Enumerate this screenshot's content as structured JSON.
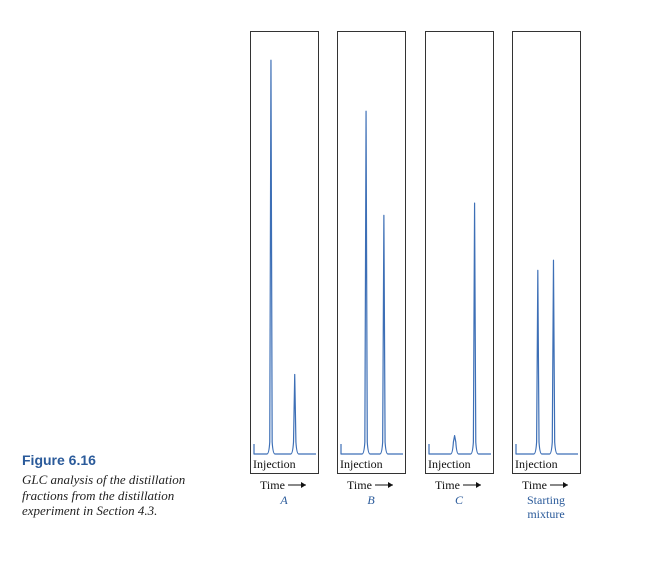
{
  "figure": {
    "title": "Figure 6.16",
    "caption": "GLC analysis of the distillation fractions from the distillation experiment in Section 4.3."
  },
  "colors": {
    "trace": "#3d6fb6",
    "label": "#2a5a9a",
    "frame": "#333333"
  },
  "chart_data": [
    {
      "type": "line",
      "name": "A",
      "injection_label": "Injection",
      "xlabel": "Time",
      "label_lines": [
        "A"
      ],
      "peaks": [
        {
          "position": 0.24,
          "height": 0.965
        },
        {
          "position": 0.68,
          "height": 0.195
        }
      ]
    },
    {
      "type": "line",
      "name": "B",
      "injection_label": "Injection",
      "xlabel": "Time",
      "label_lines": [
        "B"
      ],
      "peaks": [
        {
          "position": 0.39,
          "height": 0.84
        },
        {
          "position": 0.72,
          "height": 0.585
        }
      ]
    },
    {
      "type": "line",
      "name": "C",
      "injection_label": "Injection",
      "xlabel": "Time",
      "label_lines": [
        "C"
      ],
      "peaks": [
        {
          "position": 0.4,
          "height": 0.045
        },
        {
          "position": 0.77,
          "height": 0.615
        }
      ]
    },
    {
      "type": "line",
      "name": "Starting mixture",
      "injection_label": "Injection",
      "xlabel": "Time",
      "label_lines": [
        "Starting",
        "mixture"
      ],
      "peaks": [
        {
          "position": 0.33,
          "height": 0.45
        },
        {
          "position": 0.62,
          "height": 0.475
        }
      ]
    }
  ]
}
